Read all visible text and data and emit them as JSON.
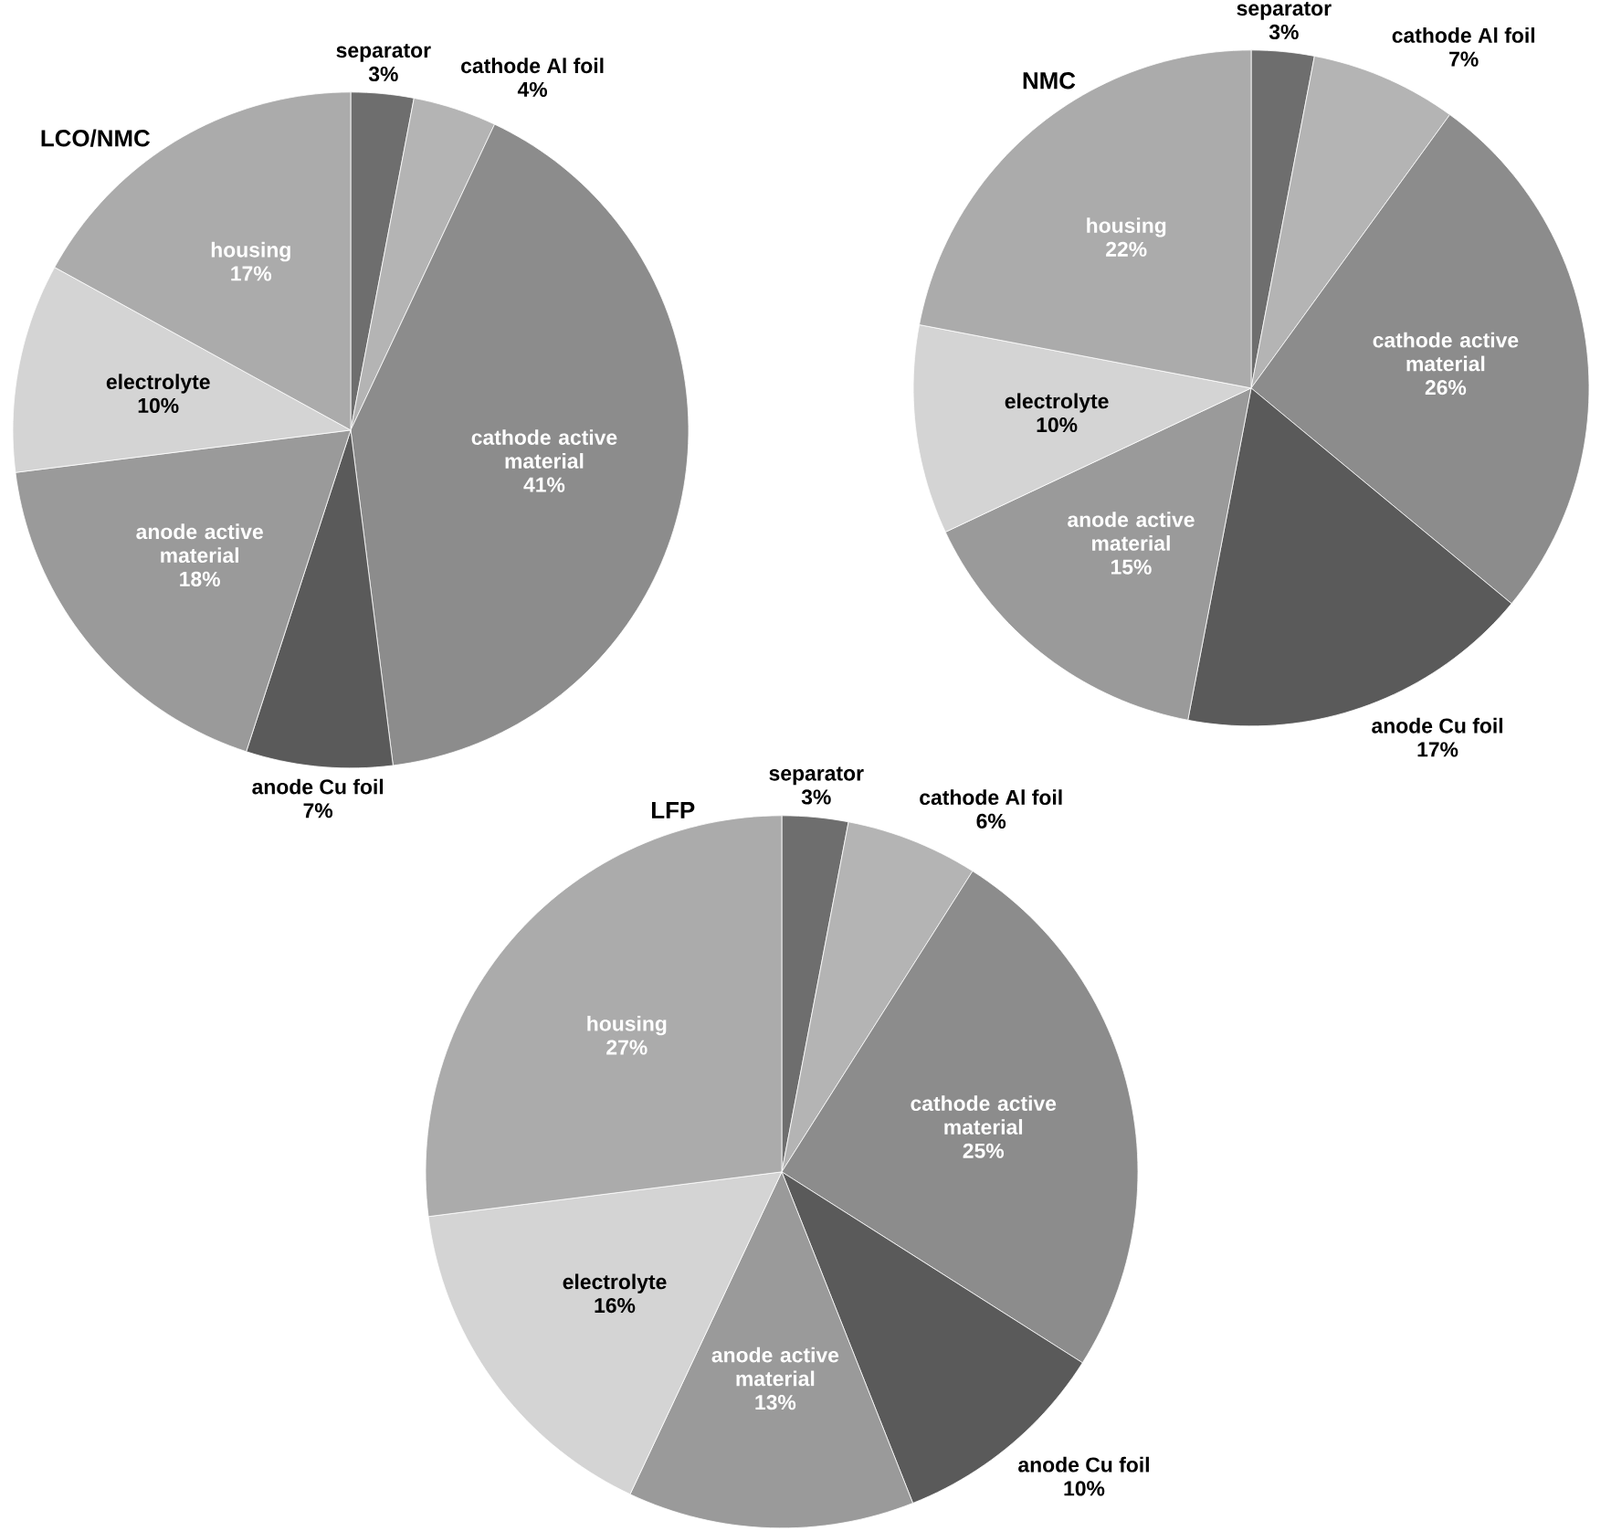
{
  "chart_data": [
    {
      "type": "pie",
      "title": "LCO/NMC",
      "categories": [
        "separator",
        "cathode Al foil",
        "cathode active material",
        "anode Cu foil",
        "anode active material",
        "electrolyte",
        "housing"
      ],
      "values": [
        3,
        4,
        41,
        7,
        18,
        10,
        17
      ],
      "value_labels": [
        "3%",
        "4%",
        "41%",
        "7%",
        "18%",
        "10%",
        "17%"
      ],
      "colors": [
        "#6e6e6e",
        "#b4b4b4",
        "#8c8c8c",
        "#5a5a5a",
        "#9a9a9a",
        "#d4d4d4",
        "#ababab"
      ]
    },
    {
      "type": "pie",
      "title": "NMC",
      "categories": [
        "separator",
        "cathode Al foil",
        "cathode active material",
        "anode Cu foil",
        "anode active material",
        "electrolyte",
        "housing"
      ],
      "values": [
        3,
        7,
        26,
        17,
        15,
        10,
        22
      ],
      "value_labels": [
        "3%",
        "7%",
        "26%",
        "17%",
        "15%",
        "10%",
        "22%"
      ],
      "colors": [
        "#6e6e6e",
        "#b4b4b4",
        "#8c8c8c",
        "#5a5a5a",
        "#9a9a9a",
        "#d4d4d4",
        "#ababab"
      ]
    },
    {
      "type": "pie",
      "title": "LFP",
      "categories": [
        "separator",
        "cathode Al foil",
        "cathode active material",
        "anode Cu foil",
        "anode active material",
        "electrolyte",
        "housing"
      ],
      "values": [
        3,
        6,
        25,
        10,
        13,
        16,
        27
      ],
      "value_labels": [
        "3%",
        "6%",
        "25%",
        "10%",
        "13%",
        "16%",
        "27%"
      ],
      "colors": [
        "#6e6e6e",
        "#b4b4b4",
        "#8c8c8c",
        "#5a5a5a",
        "#9a9a9a",
        "#d4d4d4",
        "#ababab"
      ]
    }
  ]
}
